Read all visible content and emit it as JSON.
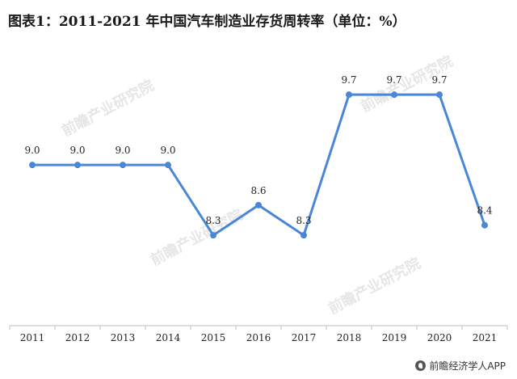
{
  "title": "图表1：2011-2021 年中国汽车制造业存货周转率（单位：%）",
  "watermark": "前瞻产业研究院",
  "footer": {
    "source_label": "前瞻经济学人APP"
  },
  "colors": {
    "line": "#4a86d8",
    "axis": "#bfbfbf",
    "watermark": "#e6e6e6"
  },
  "chart_data": {
    "type": "line",
    "title": "图表1：2011-2021 年中国汽车制造业存货周转率（单位：%）",
    "xlabel": "",
    "ylabel": "",
    "categories": [
      "2011",
      "2012",
      "2013",
      "2014",
      "2015",
      "2016",
      "2017",
      "2018",
      "2019",
      "2020",
      "2021"
    ],
    "series": [
      {
        "values": [
          9.0,
          9.0,
          9.0,
          9.0,
          8.3,
          8.6,
          8.3,
          9.7,
          9.7,
          9.7,
          8.4
        ]
      }
    ],
    "data_labels": [
      "9.0",
      "9.0",
      "9.0",
      "9.0",
      "8.3",
      "8.6",
      "8.3",
      "9.7",
      "9.7",
      "9.7",
      "8.4"
    ],
    "ylim": [
      7.4,
      10.2
    ],
    "grid": false,
    "legend": "none"
  }
}
